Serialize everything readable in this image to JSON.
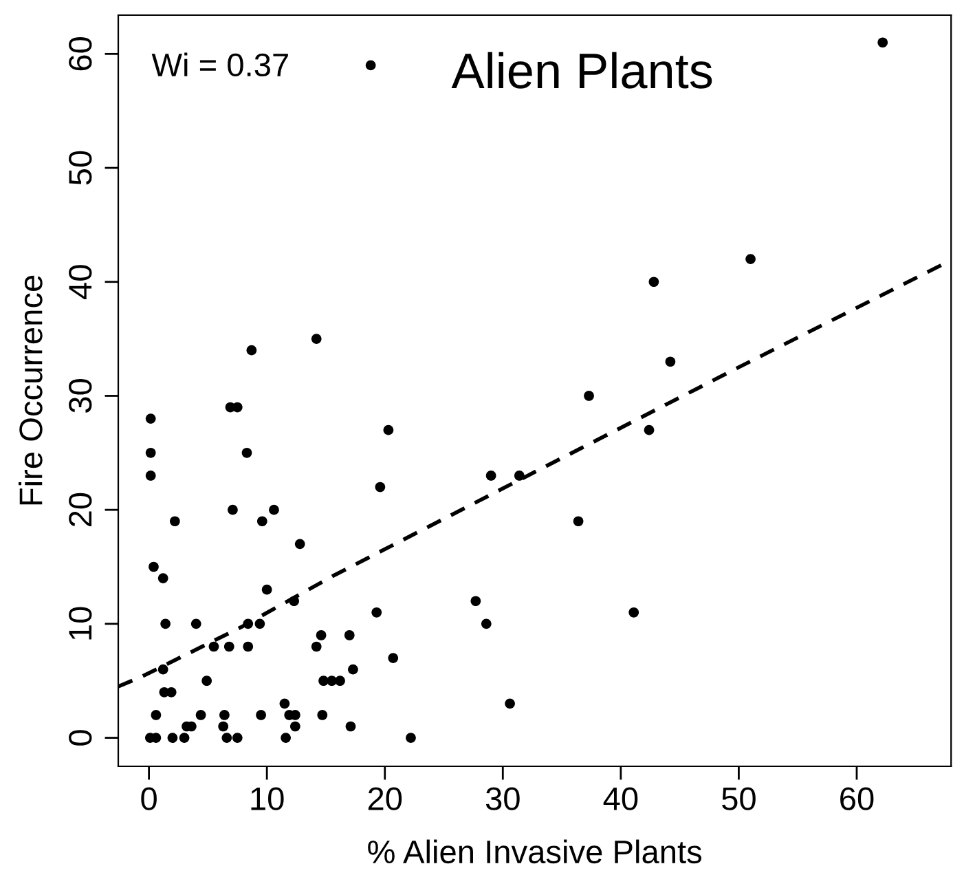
{
  "chart_data": {
    "type": "scatter",
    "title": "Alien Plants",
    "xlabel": "% Alien Invasive Plants",
    "ylabel": "Fire Occurrence",
    "annotations": [
      "Wi = 0.37"
    ],
    "xlim": [
      -2.6,
      68
    ],
    "ylim": [
      -2.5,
      63.4
    ],
    "xticks": [
      0,
      10,
      20,
      30,
      40,
      50,
      60
    ],
    "yticks": [
      0,
      10,
      20,
      30,
      40,
      50,
      60
    ],
    "grid": false,
    "legend": false,
    "series": [
      {
        "color": "#000000",
        "marker": "circle",
        "x": [
          0.15,
          0.15,
          8.3,
          0.15,
          7.1,
          10.6,
          2.2,
          9.6,
          12.8,
          0.4,
          1.2,
          10,
          12.3,
          1.4,
          4.0,
          8.4,
          9.4,
          14.6,
          5.5,
          6.8,
          8.4,
          14.2,
          1.2,
          1.3,
          1.9,
          4.9,
          14.8,
          15.5,
          16.2,
          11.5,
          0.6,
          4.4,
          6.4,
          9.5,
          11.9,
          12.4,
          14.7,
          3.2,
          3.6,
          6.3,
          12.4,
          17.1,
          0.1,
          0.6,
          2.0,
          3.0,
          6.6,
          7.5,
          11.6,
          22.2,
          20.3,
          19.6,
          29,
          31.4,
          27.7,
          28.6,
          19.3,
          17,
          17.3,
          20.7,
          30.6,
          14.2,
          8.7,
          6.9,
          7.5,
          51,
          42.8,
          44.2,
          37.3,
          42.4,
          36.4,
          41.1,
          18.8,
          62.2
        ],
        "values": [
          28,
          25,
          25,
          23,
          20,
          20,
          19,
          19,
          17,
          15,
          14,
          13,
          12,
          10,
          10,
          10,
          10,
          9,
          8,
          8,
          8,
          8,
          6,
          4,
          4,
          5,
          5,
          5,
          5,
          3,
          2,
          2,
          2,
          2,
          2,
          2,
          2,
          1,
          1,
          1,
          1,
          1,
          0,
          0,
          0,
          0,
          0,
          0,
          0,
          0,
          27,
          22,
          23,
          23,
          12,
          10,
          11,
          9,
          6,
          7,
          3,
          35,
          34,
          29,
          29,
          42,
          40,
          33,
          30,
          27,
          19,
          11,
          59,
          61
        ]
      },
      {
        "type": "line",
        "color": "#000000",
        "marker": "none",
        "line_style": "dashed",
        "x": [
          -2.6,
          -0.55,
          7.8,
          15.6,
          33.8,
          49.6,
          68
        ],
        "values": [
          4.5,
          5.4,
          9.7,
          14.2,
          23.9,
          32.3,
          41.9
        ]
      }
    ]
  }
}
